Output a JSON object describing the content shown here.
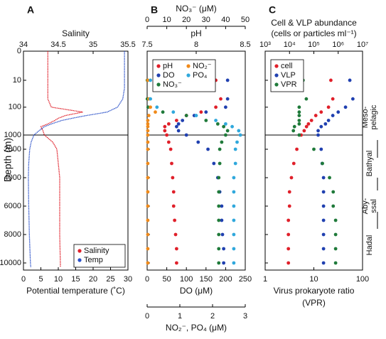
{
  "chart_data": [
    {
      "type": "line",
      "panel_label": "A",
      "ylabel": "Depth (m)",
      "ylim": [
        0,
        10500
      ],
      "yscale": "log-linear",
      "ybreak": 1000,
      "yticks": [
        0,
        10,
        100,
        1000,
        2000,
        4000,
        6000,
        8000,
        10000
      ],
      "xaxes": [
        {
          "position": "top",
          "title": "Salinity",
          "xlim": [
            34,
            35.5
          ],
          "xticks": [
            34,
            34.5,
            35,
            35.5
          ]
        },
        {
          "position": "bottom",
          "title": "Potential temperature (˚C)",
          "xlim": [
            0,
            30
          ],
          "xticks": [
            0,
            5,
            10,
            15,
            20,
            25,
            30
          ]
        }
      ],
      "legend": "lower right",
      "legend_columns": 1,
      "series": [
        {
          "name": "Salinity",
          "color": "#e0202a",
          "axis": 0,
          "y": [
            0,
            20,
            50,
            100,
            150,
            200,
            250,
            300,
            400,
            500,
            700,
            1000,
            1500,
            2000,
            3000,
            4000,
            6000,
            8000,
            10000,
            10300
          ],
          "x": [
            34.35,
            34.35,
            34.35,
            34.4,
            34.85,
            34.6,
            34.5,
            34.45,
            34.35,
            34.25,
            34.28,
            34.3,
            34.42,
            34.48,
            34.5,
            34.52,
            34.52,
            34.52,
            34.53,
            34.53
          ]
        },
        {
          "name": "Temp",
          "color": "#2a50c8",
          "axis": 1,
          "y": [
            0,
            20,
            50,
            100,
            150,
            200,
            250,
            300,
            400,
            500,
            700,
            1000,
            1500,
            2000,
            3000,
            4000,
            6000,
            8000,
            10000,
            10300
          ],
          "x": [
            29,
            29,
            28.5,
            27,
            24,
            18,
            14,
            11,
            8,
            6,
            4.5,
            3,
            2.2,
            1.8,
            1.5,
            1.4,
            1.5,
            1.7,
            2,
            2.1
          ]
        }
      ]
    },
    {
      "type": "scatter",
      "panel_label": "B",
      "ylim": [
        0,
        10500
      ],
      "yscale": "log-linear",
      "ybreak": 1000,
      "xaxes": [
        {
          "position": "top",
          "title": "pH",
          "xlim": [
            7.5,
            8.5
          ],
          "xticks": [
            7.5,
            8,
            8.5
          ]
        },
        {
          "position": "top",
          "title": "NO₃⁻ (μM)",
          "xlim": [
            0,
            50
          ],
          "xticks": [
            0,
            10,
            20,
            30,
            40,
            50
          ]
        },
        {
          "position": "bottom",
          "title": "DO (μM)",
          "xlim": [
            0,
            250
          ],
          "xticks": [
            0,
            50,
            100,
            150,
            200,
            250
          ]
        },
        {
          "position": "bottom",
          "title": "NO₂⁻, PO₄ (μM)",
          "xlim": [
            0,
            3
          ],
          "xticks": [
            0,
            1,
            2,
            3
          ]
        }
      ],
      "legend": "upper left",
      "legend_columns": 2,
      "series": [
        {
          "name": "pH",
          "color": "#e0202a",
          "axis": 0,
          "y": [
            10,
            50,
            100,
            150,
            200,
            300,
            400,
            500,
            700,
            1000,
            1500,
            2000,
            3000,
            4000,
            5000,
            6000,
            7000,
            8000,
            9000,
            10000
          ],
          "x": [
            8.2,
            8.25,
            8.2,
            8.05,
            7.9,
            7.8,
            7.72,
            7.68,
            7.68,
            7.7,
            7.72,
            7.74,
            7.75,
            7.76,
            7.77,
            7.77,
            7.78,
            7.79,
            7.8,
            7.8
          ]
        },
        {
          "name": "DO",
          "color": "#2040b0",
          "axis": 2,
          "y": [
            10,
            50,
            100,
            150,
            200,
            300,
            400,
            500,
            700,
            1000,
            1500,
            2000,
            3000,
            4000,
            5000,
            6000,
            7000,
            8000,
            9000,
            10000
          ],
          "x": [
            205,
            205,
            200,
            150,
            120,
            90,
            80,
            75,
            80,
            100,
            130,
            155,
            170,
            180,
            185,
            190,
            190,
            192,
            195,
            195
          ]
        },
        {
          "name": "NO₃⁻",
          "color": "#1f7a3a",
          "axis": 1,
          "y": [
            10,
            50,
            100,
            150,
            200,
            300,
            400,
            500,
            700,
            1000,
            1500,
            2000,
            3000,
            4000,
            5000,
            6000,
            7000,
            8000,
            9000,
            10000
          ],
          "x": [
            0.1,
            0.1,
            0.5,
            8,
            20,
            30,
            36,
            39,
            41,
            40,
            38,
            37,
            37,
            36.5,
            36.5,
            36.5,
            36.5,
            36.5,
            36.5,
            36.5
          ]
        },
        {
          "name": "NO₂⁻",
          "color": "#f08a1a",
          "axis": 3,
          "y": [
            10,
            50,
            100,
            150,
            200,
            300,
            400,
            500,
            700,
            1000,
            1500,
            2000,
            3000,
            4000,
            5000,
            6000,
            7000,
            8000,
            9000,
            10000
          ],
          "x": [
            0.02,
            0.05,
            0.1,
            0.25,
            0.05,
            0.02,
            0.02,
            0.02,
            0.02,
            0.02,
            0.02,
            0.02,
            0.02,
            0.02,
            0.02,
            0.02,
            0.02,
            0.02,
            0.02,
            0.02
          ]
        },
        {
          "name": "PO₄",
          "color": "#30a8dc",
          "axis": 3,
          "y": [
            10,
            50,
            100,
            150,
            200,
            300,
            400,
            500,
            700,
            1000,
            1500,
            2000,
            3000,
            4000,
            5000,
            6000,
            7000,
            8000,
            9000,
            10000
          ],
          "x": [
            0.1,
            0.1,
            0.3,
            0.8,
            1.5,
            2.1,
            2.4,
            2.6,
            2.8,
            2.85,
            2.75,
            2.7,
            2.7,
            2.65,
            2.65,
            2.65,
            2.65,
            2.65,
            2.65,
            2.65
          ]
        }
      ]
    },
    {
      "type": "scatter",
      "panel_label": "C",
      "ylim": [
        0,
        10500
      ],
      "yscale": "log-linear",
      "ybreak": 1000,
      "xaxes": [
        {
          "position": "top",
          "title": [
            "Cell & VLP abundance",
            "(cells or particles ml⁻¹)"
          ],
          "xscale": "log",
          "xlim": [
            1000,
            10000000
          ],
          "xticks": [
            {
              "value": 1000,
              "label": "10³"
            },
            {
              "value": 10000,
              "label": "10⁴"
            },
            {
              "value": 100000,
              "label": "10⁵"
            },
            {
              "value": 1000000,
              "label": "10⁶"
            },
            {
              "value": 10000000,
              "label": "10⁷"
            }
          ]
        },
        {
          "position": "bottom",
          "title": [
            "Virus prokaryote ratio",
            "(VPR)"
          ],
          "xscale": "log",
          "xlim": [
            1,
            100
          ],
          "xticks": [
            1,
            10,
            100
          ]
        }
      ],
      "legend": "upper left",
      "legend_columns": 1,
      "zones": [
        [
          "Meso-",
          "pelagic"
        ],
        [
          "Bathyal"
        ],
        [
          "Aby-",
          "ssal"
        ],
        [
          "Hadal"
        ]
      ],
      "series": [
        {
          "name": "cell",
          "color": "#e0202a",
          "axis": 0,
          "y": [
            10,
            50,
            100,
            150,
            200,
            300,
            400,
            500,
            700,
            1000,
            2000,
            3000,
            4000,
            5000,
            6000,
            7000,
            8000,
            9000,
            10000
          ],
          "x": [
            500000,
            600000,
            400000,
            200000,
            120000,
            80000,
            60000,
            50000,
            40000,
            30000,
            20000,
            15000,
            12000,
            10000,
            10000,
            9000,
            9000,
            9000,
            9000
          ]
        },
        {
          "name": "VLP",
          "color": "#2040b0",
          "axis": 0,
          "y": [
            10,
            50,
            100,
            150,
            200,
            300,
            400,
            500,
            700,
            1000,
            2000,
            3000,
            4000,
            5000,
            6000,
            7000,
            8000,
            9000,
            10000
          ],
          "x": [
            3000000,
            4000000,
            2000000,
            1000000,
            600000,
            400000,
            300000,
            200000,
            150000,
            150000,
            200000,
            220000,
            250000,
            250000,
            250000,
            250000,
            250000,
            250000,
            250000
          ]
        },
        {
          "name": "VPR",
          "color": "#1f7a3a",
          "axis": 1,
          "y": [
            10,
            50,
            100,
            150,
            200,
            300,
            400,
            500,
            700,
            1000,
            2000,
            3000,
            4000,
            5000,
            6000,
            7000,
            8000,
            9000,
            10000
          ],
          "x": [
            6,
            7,
            5,
            5,
            5,
            5,
            5,
            4,
            3.8,
            5,
            10,
            15,
            21,
            25,
            25,
            28,
            28,
            28,
            28
          ]
        }
      ]
    }
  ]
}
